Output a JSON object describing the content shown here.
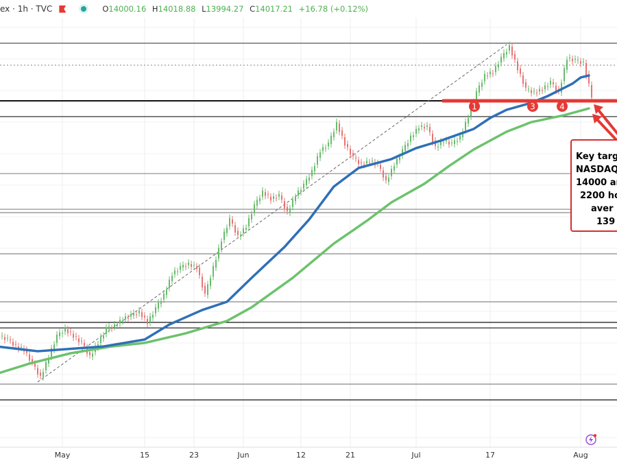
{
  "header": {
    "symbol": "ex · 1h · TVC",
    "open_label": "O",
    "open": "14000.16",
    "high_label": "H",
    "high": "14018.88",
    "low_label": "L",
    "low": "13994.27",
    "close_label": "C",
    "close": "14017.21",
    "change": "+16.78 (+0.12%)"
  },
  "annotation": {
    "lines": [
      "Key targ",
      "NASDAQ",
      "14000 ar",
      "2200 ho",
      "aver",
      "139"
    ],
    "color": "#d32f2f"
  },
  "markers": [
    "1",
    "3",
    "4"
  ],
  "colors": {
    "up": "#66bb6a",
    "down": "#e57373",
    "ma_blue": "#2f6fb7",
    "ma_green": "#6cc26c",
    "red": "#e53935"
  },
  "chart_data": {
    "type": "candlestick",
    "interval": "1h",
    "dates": [
      "2023-04-19",
      "2023-04-20",
      "2023-04-21",
      "2023-04-24",
      "2023-04-25",
      "2023-04-26",
      "2023-04-27",
      "2023-04-28",
      "2023-05-01",
      "2023-05-02",
      "2023-05-03",
      "2023-05-04",
      "2023-05-05",
      "2023-05-08",
      "2023-05-09",
      "2023-05-10",
      "2023-05-11",
      "2023-05-12",
      "2023-05-15",
      "2023-05-16",
      "2023-05-17",
      "2023-05-18",
      "2023-05-19",
      "2023-05-22",
      "2023-05-23",
      "2023-05-24",
      "2023-05-25",
      "2023-05-26",
      "2023-05-30",
      "2023-05-31",
      "2023-06-01",
      "2023-06-02",
      "2023-06-05",
      "2023-06-06",
      "2023-06-07",
      "2023-06-08",
      "2023-06-09",
      "2023-06-12",
      "2023-06-13",
      "2023-06-14",
      "2023-06-15",
      "2023-06-16",
      "2023-06-20",
      "2023-06-21",
      "2023-06-22",
      "2023-06-23",
      "2023-06-26",
      "2023-06-27",
      "2023-06-28",
      "2023-06-29",
      "2023-06-30",
      "2023-07-03",
      "2023-07-05",
      "2023-07-06",
      "2023-07-07",
      "2023-07-10",
      "2023-07-11",
      "2023-07-12",
      "2023-07-13",
      "2023-07-14",
      "2023-07-17",
      "2023-07-18",
      "2023-07-19",
      "2023-07-20",
      "2023-07-21",
      "2023-07-24",
      "2023-07-25",
      "2023-07-26",
      "2023-07-27",
      "2023-07-28",
      "2023-07-31",
      "2023-08-01",
      "2023-08-02"
    ],
    "close": [
      12134,
      12107,
      12052,
      12025,
      11916,
      11808,
      11971,
      12134,
      12188,
      12134,
      12080,
      11971,
      12080,
      12188,
      12216,
      12270,
      12297,
      12324,
      12243,
      12352,
      12460,
      12624,
      12678,
      12705,
      12678,
      12460,
      12678,
      12896,
      13059,
      12923,
      13004,
      13168,
      13276,
      13222,
      13249,
      13113,
      13249,
      13331,
      13440,
      13603,
      13657,
      13820,
      13657,
      13548,
      13494,
      13521,
      13494,
      13358,
      13494,
      13603,
      13712,
      13793,
      13793,
      13630,
      13684,
      13657,
      13712,
      13875,
      14065,
      14201,
      14228,
      14337,
      14430,
      14256,
      14092,
      14065,
      14092,
      14147,
      14065,
      14337,
      14321,
      14299,
      14038
    ],
    "ma_100": [
      [
        0,
        12052
      ],
      [
        5,
        12014
      ],
      [
        13,
        12052
      ],
      [
        18,
        12107
      ],
      [
        21,
        12226
      ],
      [
        25,
        12341
      ],
      [
        28,
        12406
      ],
      [
        31,
        12596
      ],
      [
        35,
        12841
      ],
      [
        38,
        13059
      ],
      [
        41,
        13320
      ],
      [
        44,
        13467
      ],
      [
        48,
        13538
      ],
      [
        51,
        13625
      ],
      [
        54,
        13684
      ],
      [
        58,
        13777
      ],
      [
        60,
        13864
      ],
      [
        62,
        13929
      ],
      [
        65,
        13984
      ],
      [
        67,
        14038
      ],
      [
        70,
        14136
      ],
      [
        71,
        14185
      ],
      [
        72,
        14201
      ]
    ],
    "ma_200": [
      [
        0,
        11835
      ],
      [
        4,
        11916
      ],
      [
        9,
        11998
      ],
      [
        14,
        12052
      ],
      [
        18,
        12080
      ],
      [
        23,
        12156
      ],
      [
        28,
        12254
      ],
      [
        31,
        12362
      ],
      [
        36,
        12596
      ],
      [
        41,
        12868
      ],
      [
        45,
        13048
      ],
      [
        48,
        13195
      ],
      [
        52,
        13342
      ],
      [
        55,
        13483
      ],
      [
        58,
        13614
      ],
      [
        62,
        13755
      ],
      [
        65,
        13831
      ],
      [
        69,
        13886
      ],
      [
        72,
        13940
      ]
    ],
    "levels": [
      {
        "price": 14457,
        "style": "solid",
        "color": "#555"
      },
      {
        "price": 14283,
        "style": "dotted",
        "color": "#999"
      },
      {
        "price": 14000,
        "style": "solid",
        "color": "#111"
      },
      {
        "price": 13875,
        "style": "solid",
        "color": "#333"
      },
      {
        "price": 13423,
        "style": "solid",
        "color": "#888"
      },
      {
        "price": 13140,
        "style": "solid",
        "color": "#888"
      },
      {
        "price": 13113,
        "style": "solid",
        "color": "#888"
      },
      {
        "price": 12787,
        "style": "solid",
        "color": "#888"
      },
      {
        "price": 12406,
        "style": "solid",
        "color": "#888"
      },
      {
        "price": 12243,
        "style": "solid",
        "color": "#111"
      },
      {
        "price": 12199,
        "style": "solid",
        "color": "#111"
      },
      {
        "price": 11753,
        "style": "solid",
        "color": "#888"
      },
      {
        "price": 11628,
        "style": "solid",
        "color": "#111"
      }
    ],
    "red_level": 14000,
    "trendline": [
      [
        5,
        11770
      ],
      [
        62,
        14446
      ]
    ],
    "x_ticks": [
      {
        "date": "2023-05-01",
        "label": "May"
      },
      {
        "date": "2023-05-15",
        "label": "15"
      },
      {
        "date": "2023-05-23",
        "label": "23"
      },
      {
        "date": "2023-06-01",
        "label": "Jun"
      },
      {
        "date": "2023-06-12",
        "label": "12"
      },
      {
        "date": "2023-06-21",
        "label": "21"
      },
      {
        "date": "2023-07-03",
        "label": "Jul"
      },
      {
        "date": "2023-07-17",
        "label": "17"
      },
      {
        "date": "2023-08-01",
        "label": "Aug"
      }
    ],
    "grid": true
  }
}
